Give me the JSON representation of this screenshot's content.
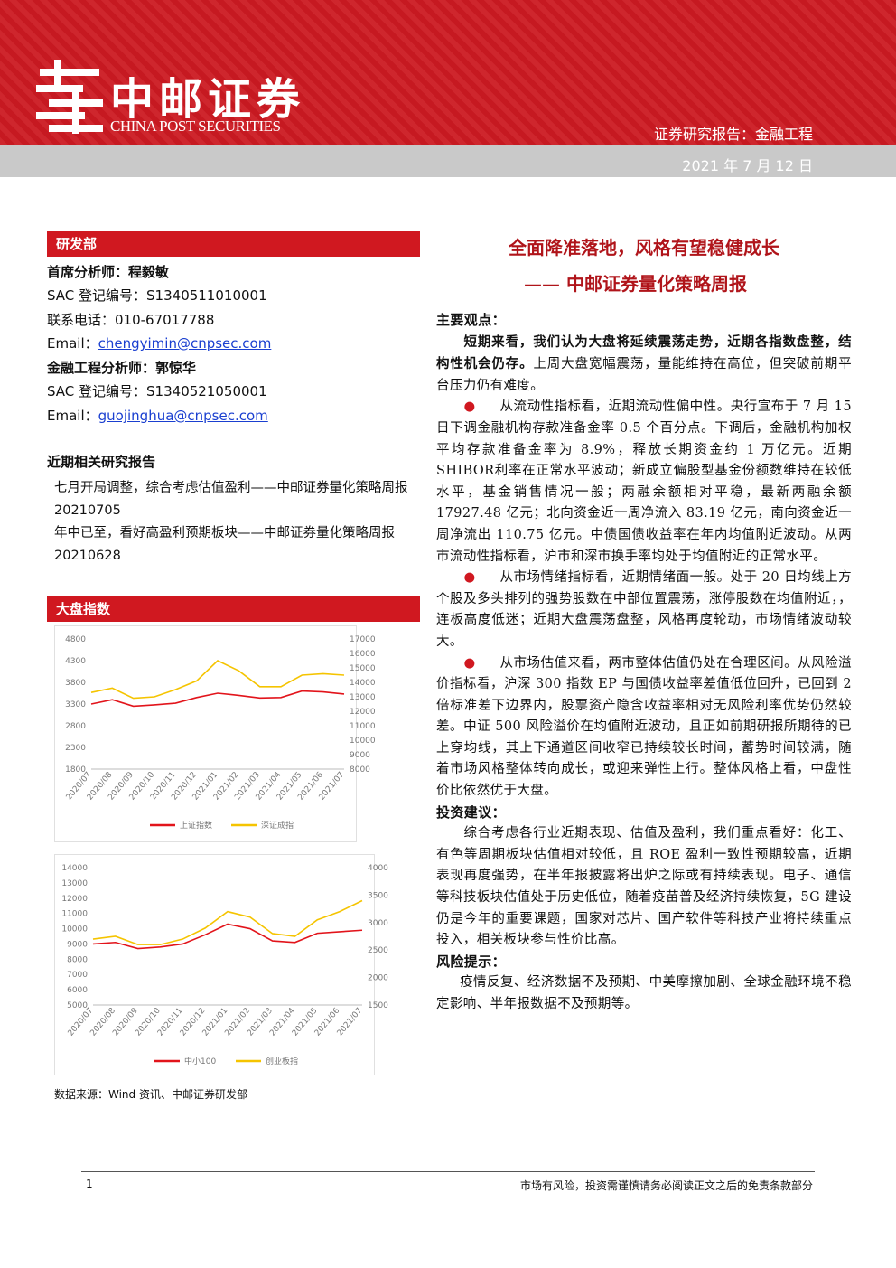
{
  "header": {
    "company": "中邮证券",
    "company_en": "CHINA POST SECURITIES",
    "report_type": "证券研究报告：金融工程",
    "date": "2021 年 7 月 12 日"
  },
  "sidebar": {
    "department": "研发部",
    "analysts": [
      {
        "role": "首席分析师：程毅敏",
        "sac": "SAC 登记编号：S1340511010001",
        "phone": "联系电话：010-67017788",
        "email_label": "Email：",
        "email": "chengyimin@cnpsec.com"
      },
      {
        "role": "金融工程分析师：郭惊华",
        "sac": "SAC 登记编号：S1340521050001",
        "email_label": "Email：",
        "email": "guojinghua@cnpsec.com"
      }
    ],
    "related_title": "近期相关研究报告",
    "related": [
      "七月开局调整，综合考虑估值盈利——中邮证券量化策略周报 20210705",
      "年中已至，看好高盈利预期板块——中邮证券量化策略周报 20210628"
    ],
    "index_title": "大盘指数",
    "source": "数据来源：Wind 资讯、中邮证券研发部"
  },
  "charts": [
    {
      "type": "line",
      "categories": [
        "2020/07",
        "2020/08",
        "2020/09",
        "2020/10",
        "2020/11",
        "2020/12",
        "2021/01",
        "2021/02",
        "2021/03",
        "2021/04",
        "2021/05",
        "2021/06",
        "2021/07"
      ],
      "ylim": [
        1800,
        4800
      ],
      "yticks": [
        1800,
        2300,
        2800,
        3300,
        3800,
        4300,
        4800
      ],
      "y2lim": [
        8000,
        17000
      ],
      "y2ticks": [
        8000,
        9000,
        10000,
        11000,
        12000,
        13000,
        14000,
        15000,
        16000,
        17000
      ],
      "series": [
        {
          "name": "上证指数",
          "color": "#e2141b",
          "values": [
            3300,
            3400,
            3250,
            3280,
            3320,
            3450,
            3550,
            3500,
            3440,
            3450,
            3600,
            3580,
            3530
          ]
        },
        {
          "name": "深证成指",
          "color": "#f5c400",
          "axis": "y2",
          "values": [
            13300,
            13600,
            12900,
            13000,
            13500,
            14100,
            15500,
            14800,
            13700,
            13700,
            14500,
            14600,
            14500
          ]
        }
      ]
    },
    {
      "type": "line",
      "categories": [
        "2020/07",
        "2020/08",
        "2020/09",
        "2020/10",
        "2020/11",
        "2020/12",
        "2021/01",
        "2021/02",
        "2021/03",
        "2021/04",
        "2021/05",
        "2021/06",
        "2021/07"
      ],
      "ylim": [
        5000,
        14000
      ],
      "yticks": [
        5000,
        6000,
        7000,
        8000,
        9000,
        10000,
        11000,
        12000,
        13000,
        14000
      ],
      "y2lim": [
        1500,
        4000
      ],
      "y2ticks": [
        1500,
        2000,
        2500,
        3000,
        3500,
        4000
      ],
      "series": [
        {
          "name": "中小100",
          "color": "#e2141b",
          "values": [
            9000,
            9100,
            8700,
            8800,
            9000,
            9600,
            10300,
            10000,
            9200,
            9100,
            9700,
            9800,
            9900
          ]
        },
        {
          "name": "创业板指",
          "color": "#f5c400",
          "axis": "y2",
          "values": [
            2700,
            2750,
            2600,
            2600,
            2700,
            2900,
            3200,
            3100,
            2800,
            2750,
            3050,
            3200,
            3400
          ]
        }
      ]
    }
  ],
  "article": {
    "title": "全面降准落地，风格有望稳健成长",
    "subtitle": "—— 中邮证券量化策略周报",
    "main_heading": "主要观点：",
    "intro_bold": "短期来看，我们认为大盘将延续震荡走势，近期各指数盘整，结构性机会仍存。",
    "intro_text": "上周大盘宽幅震荡，量能维持在高位，但突破前期平台压力仍有难度。",
    "bullets": [
      "从流动性指标看，近期流动性偏中性。央行宣布于 7 月 15 日下调金融机构存款准备金率 0.5 个百分点。下调后，金融机构加权平均存款准备金率为 8.9%，释放长期资金约 1 万亿元。近期SHIBOR利率在正常水平波动；新成立偏股型基金份额数维持在较低水平，基金销售情况一般；两融余额相对平稳，最新两融余额 17927.48 亿元；北向资金近一周净流入 83.19 亿元，南向资金近一周净流出 110.75 亿元。中债国债收益率在年内均值附近波动。从两市流动性指标看，沪市和深市换手率均处于均值附近的正常水平。",
      "从市场情绪指标看，近期情绪面一般。处于 20 日均线上方个股及多头排列的强势股数在中部位置震荡，涨停股数在均值附近，，连板高度低迷；近期大盘震荡盘整，风格再度轮动，市场情绪波动较大。",
      "从市场估值来看，两市整体估值仍处在合理区间。从风险溢价指标看，沪深 300 指数 EP 与国债收益率差值低位回升，已回到 2 倍标准差下边界内，股票资产隐含收益率相对无风险利率优势仍然较差。中证 500 风险溢价在均值附近波动，且正如前期研报所期待的已上穿均线，其上下通道区间收窄已持续较长时间，蓄势时间较满，随着市场风格整体转向成长，或迎来弹性上行。整体风格上看，中盘性价比依然优于大盘。"
    ],
    "advice_heading": "投资建议：",
    "advice": "综合考虑各行业近期表现、估值及盈利，我们重点看好：化工、有色等周期板块估值相对较低，且 ROE 盈利一致性预期较高，近期表现再度强势，在半年报披露将出炉之际或有持续表现。电子、通信等科技板块估值处于历史低位，随着疫苗普及经济持续恢复，5G 建设仍是今年的重要课题，国家对芯片、国产软件等科技产业将持续重点投入，相关板块参与性价比高。",
    "risk_heading": "风险提示：",
    "risk": "疫情反复、经济数据不及预期、中美摩擦加剧、全球金融环境不稳定影响、半年报数据不及预期等。"
  },
  "footer": {
    "page": "1",
    "disclaimer": "市场有风险，投资需谨慎请务必阅读正文之后的免责条款部分"
  }
}
